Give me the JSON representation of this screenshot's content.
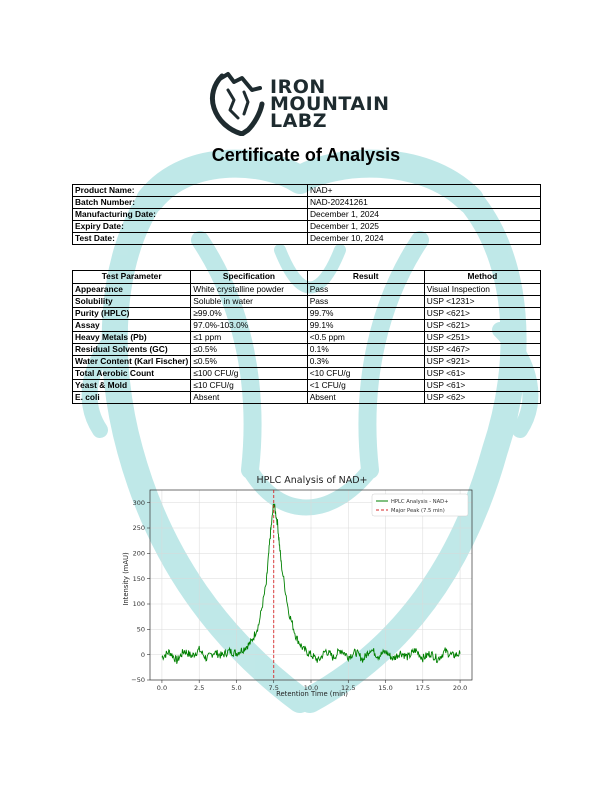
{
  "header": {
    "logo_lines": [
      "IRON",
      "MOUNTAIN",
      "LABZ"
    ],
    "title": "Certificate of Analysis"
  },
  "product_info": [
    {
      "label": "Product Name:",
      "value": "NAD+"
    },
    {
      "label": "Batch Number:",
      "value": "NAD-20241261"
    },
    {
      "label": "Manufacturing Date:",
      "value": "December 1, 2024"
    },
    {
      "label": "Expiry Date:",
      "value": "December 1, 2025"
    },
    {
      "label": "Test Date:",
      "value": "December 10, 2024"
    }
  ],
  "tests": {
    "headers": [
      "Test Parameter",
      "Specification",
      "Result",
      "Method"
    ],
    "rows": [
      {
        "param": "Appearance",
        "spec": "White crystalline powder",
        "result": "Pass",
        "method": "Visual Inspection"
      },
      {
        "param": "Solubility",
        "spec": "Soluble in water",
        "result": "Pass",
        "method": "USP <1231>"
      },
      {
        "param": "Purity (HPLC)",
        "spec": "≥99.0%",
        "result": "99.7%",
        "method": "USP <621>"
      },
      {
        "param": "Assay",
        "spec": "97.0%-103.0%",
        "result": "99.1%",
        "method": "USP <621>"
      },
      {
        "param": "Heavy Metals (Pb)",
        "spec": "≤1 ppm",
        "result": "<0.5 ppm",
        "method": "USP <251>"
      },
      {
        "param": "Residual Solvents (GC)",
        "spec": "≤0.5%",
        "result": "0.1%",
        "method": "USP <467>"
      },
      {
        "param": "Water Content (Karl Fischer)",
        "spec": "≤0.5%",
        "result": "0.3%",
        "method": "USP <921>"
      },
      {
        "param": "Total Aerobic Count",
        "spec": "≤100 CFU/g",
        "result": "<10 CFU/g",
        "method": "USP <61>"
      },
      {
        "param": "Yeast & Mold",
        "spec": "≤10 CFU/g",
        "result": "<1 CFU/g",
        "method": "USP <61>"
      },
      {
        "param": "E. coli",
        "spec": "Absent",
        "result": "Absent",
        "method": "USP <62>"
      }
    ]
  },
  "chart_data": {
    "type": "line",
    "title": "HPLC Analysis of NAD+",
    "xlabel": "Retention Time (min)",
    "ylabel": "Intensity (mAU)",
    "xlim": [
      -0.8,
      20.8
    ],
    "ylim": [
      -50,
      325
    ],
    "xticks": [
      "0.0",
      "2.5",
      "5.0",
      "7.5",
      "10.0",
      "12.5",
      "15.0",
      "17.5",
      "20.0"
    ],
    "yticks": [
      "−50",
      "0",
      "50",
      "100",
      "150",
      "200",
      "250",
      "300"
    ],
    "grid": true,
    "legend_position": "top-right",
    "series": [
      {
        "name": "HPLC Analysis - NAD+",
        "color": "#008000",
        "x": [
          0,
          0.5,
          1,
          1.5,
          2,
          2.5,
          3,
          3.5,
          4,
          4.5,
          5,
          5.5,
          6,
          6.5,
          7,
          7.25,
          7.5,
          7.75,
          8,
          8.5,
          9,
          9.5,
          10,
          10.5,
          11,
          11.5,
          12,
          12.5,
          13,
          13.5,
          14,
          14.5,
          15,
          15.5,
          16,
          16.5,
          17,
          17.5,
          18,
          18.5,
          19,
          19.5,
          20
        ],
        "y": [
          -5,
          6,
          -12,
          8,
          -3,
          10,
          -8,
          5,
          -2,
          7,
          3,
          12,
          25,
          60,
          140,
          230,
          300,
          260,
          180,
          85,
          35,
          10,
          0,
          -12,
          8,
          -6,
          10,
          -4,
          5,
          -10,
          12,
          -3,
          6,
          -8,
          4,
          -5,
          9,
          -7,
          3,
          -9,
          7,
          -2,
          2
        ]
      }
    ],
    "reference_lines": [
      {
        "name": "Major Peak (7.5 min)",
        "x": 7.5,
        "color": "#d62728",
        "style": "dashed"
      }
    ]
  }
}
